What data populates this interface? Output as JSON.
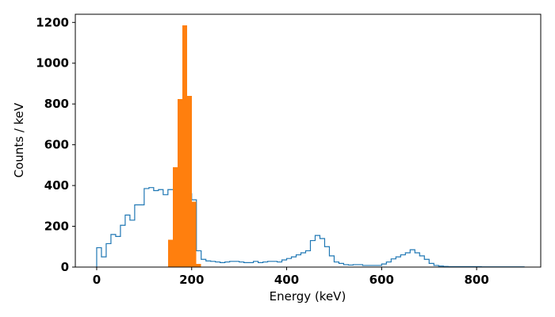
{
  "chart_data": {
    "type": "bar",
    "xlabel": "Energy (keV)",
    "ylabel": "Counts / keV",
    "xlim": [
      -45,
      935
    ],
    "ylim": [
      0,
      1240
    ],
    "xticks": [
      0,
      200,
      400,
      600,
      800
    ],
    "yticks": [
      0,
      200,
      400,
      600,
      800,
      1000,
      1200
    ],
    "grid": false,
    "legend": "none",
    "series": [
      {
        "kind": "step",
        "color": "#1f77b4",
        "bin_width": 10,
        "bin_start": 0,
        "values": [
          95,
          50,
          115,
          160,
          150,
          205,
          255,
          230,
          305,
          305,
          385,
          390,
          375,
          380,
          355,
          380,
          380,
          370,
          375,
          360,
          330,
          80,
          38,
          30,
          28,
          25,
          22,
          25,
          28,
          28,
          25,
          22,
          22,
          28,
          22,
          25,
          28,
          28,
          25,
          35,
          42,
          50,
          60,
          70,
          80,
          130,
          155,
          140,
          100,
          55,
          25,
          18,
          12,
          10,
          12,
          12,
          8,
          8,
          8,
          8,
          15,
          25,
          40,
          50,
          60,
          70,
          85,
          70,
          55,
          38,
          18,
          8,
          5,
          3,
          2,
          2,
          2,
          2,
          2,
          2,
          2,
          1,
          1,
          1,
          1,
          1,
          1,
          1,
          1,
          1
        ]
      },
      {
        "kind": "filled",
        "color": "#ff7f0e",
        "bin_width": 10,
        "bin_start": 150,
        "values": [
          135,
          490,
          825,
          1185,
          840,
          320,
          15
        ]
      }
    ]
  }
}
